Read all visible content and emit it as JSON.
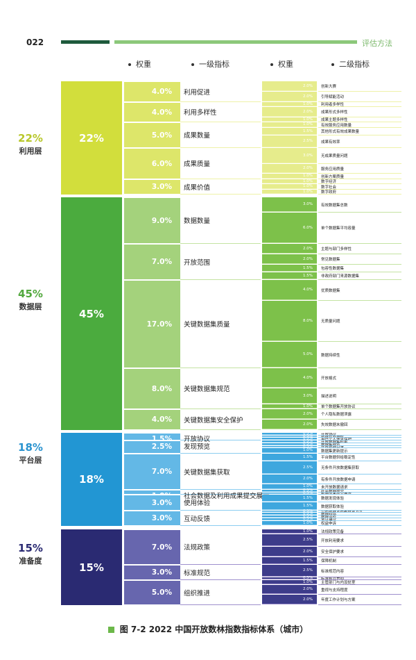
{
  "header": {
    "page_number": "022",
    "section_title": "评估方法"
  },
  "columns": {
    "weight1": "权重",
    "level1": "一级指标",
    "weight2": "权重",
    "level2": "二级指标"
  },
  "caption": "图 7-2  2022 中国开放数林指数指标体系（城市）",
  "layers": [
    {
      "pct": "22%",
      "name": "利用层",
      "color": "#d2de3c",
      "label_color": "#b8c72a",
      "shade1": "#dde66a",
      "shade2": "#e6ec8c",
      "shade_line": "#eef2a8",
      "l1": [
        {
          "weight": "4.0%",
          "name": "利用促进",
          "l2": [
            {
              "weight": "2.0%",
              "name": "创新大赛"
            },
            {
              "weight": "2.0%",
              "name": "引导赋能活动"
            }
          ]
        },
        {
          "weight": "4.0%",
          "name": "利用多样性",
          "l2": [
            {
              "weight": "1.0%",
              "name": "利用者多样性"
            },
            {
              "weight": "2.0%",
              "name": "成果形式多样性"
            },
            {
              "weight": "1.0%",
              "name": "成果主题多样性"
            }
          ]
        },
        {
          "weight": "5.0%",
          "name": "成果数量",
          "l2": [
            {
              "weight": "1.0%",
              "name": "有效服务应用数量"
            },
            {
              "weight": "1.5%",
              "name": "其他形式有效成果数量"
            },
            {
              "weight": "2.5%",
              "name": "成果有效率"
            }
          ]
        },
        {
          "weight": "6.0%",
          "name": "成果质量",
          "l2": [
            {
              "weight": "3.0%",
              "name": "无成果质量问题"
            },
            {
              "weight": "2.0%",
              "name": "服务应用质量"
            },
            {
              "weight": "1.0%",
              "name": "创新方案质量"
            }
          ]
        },
        {
          "weight": "3.0%",
          "name": "成果价值",
          "l2": [
            {
              "weight": "1.0%",
              "name": "数字经济"
            },
            {
              "weight": "1.0%",
              "name": "数字社会"
            },
            {
              "weight": "1.0%",
              "name": "数字政府"
            }
          ]
        }
      ]
    },
    {
      "pct": "45%",
      "name": "数据层",
      "color": "#4bab3e",
      "label_color": "#52a83e",
      "shade1": "#a4d27c",
      "shade2": "#7dc14a",
      "shade_line": "#c4e3a2",
      "l1": [
        {
          "weight": "9.0%",
          "name": "数据数量",
          "l2": [
            {
              "weight": "3.0%",
              "name": "有效数据集总数"
            },
            {
              "weight": "6.0%",
              "name": "单个数据集平均容量"
            }
          ]
        },
        {
          "weight": "7.0%",
          "name": "开放范围",
          "l2": [
            {
              "weight": "2.0%",
              "name": "主题与部门多样性"
            },
            {
              "weight": "2.0%",
              "name": "常见数据集"
            },
            {
              "weight": "1.5%",
              "name": "包容性数据集"
            },
            {
              "weight": "1.5%",
              "name": "非政府部门来源数据集"
            }
          ]
        },
        {
          "weight": "17.0%",
          "name": "关键数据集质量",
          "l2": [
            {
              "weight": "4.0%",
              "name": "优质数据集"
            },
            {
              "weight": "8.0%",
              "name": "无质量问题"
            },
            {
              "weight": "5.0%",
              "name": "数据持续性"
            }
          ]
        },
        {
          "weight": "8.0%",
          "name": "关键数据集规范",
          "l2": [
            {
              "weight": "4.0%",
              "name": "开放格式"
            },
            {
              "weight": "3.0%",
              "name": "描述说明"
            },
            {
              "weight": "1.0%",
              "name": "单个数据集开放协议"
            }
          ]
        },
        {
          "weight": "4.0%",
          "name": "关键数据集安全保护",
          "l2": [
            {
              "weight": "2.0%",
              "name": "个人隐私数据泄露"
            },
            {
              "weight": "2.0%",
              "name": "失效数据未撤回"
            }
          ]
        }
      ]
    },
    {
      "pct": "18%",
      "name": "平台层",
      "color": "#2296d3",
      "label_color": "#2a93cf",
      "shade1": "#63b8e6",
      "shade2": "#3ea7de",
      "shade_line": "#8ccdf0",
      "l1": [
        {
          "weight": "1.5%",
          "name": "开放协议",
          "l2": [
            {
              "weight": "0.5%",
              "name": "开放协议"
            },
            {
              "weight": "0.5%",
              "name": "数据开放授权"
            },
            {
              "weight": "0.5%",
              "name": "用户个人信息保护"
            }
          ]
        },
        {
          "weight": "2.5%",
          "name": "发现预览",
          "l2": [
            {
              "weight": "0.5%",
              "name": "开放数据集检索"
            },
            {
              "weight": "0.5%",
              "name": "数据集预览"
            },
            {
              "weight": "0.5%",
              "name": "开放数据目录"
            },
            {
              "weight": "1.0%",
              "name": "数据集更新提示"
            }
          ]
        },
        {
          "weight": "7.0%",
          "name": "关键数据集获取",
          "l2": [
            {
              "weight": "1.5%",
              "name": "平台数据供给稳定性"
            },
            {
              "weight": "2.5%",
              "name": "无条件开放数据集获取"
            },
            {
              "weight": "2.0%",
              "name": "有条件开放数据申请"
            },
            {
              "weight": "1.0%",
              "name": "未开放数据请求"
            }
          ]
        },
        {
          "weight": "1.0%",
          "name": "社会数据及利用成果提交展示",
          "l2": [
            {
              "weight": "0.5%",
              "name": "社会数据提交"
            },
            {
              "weight": "0.5%",
              "name": "利用成果提交展示"
            }
          ]
        },
        {
          "weight": "3.0%",
          "name": "使用体验",
          "l2": [
            {
              "weight": "1.5%",
              "name": "数据发现体验"
            },
            {
              "weight": "1.5%",
              "name": "数据获取体验"
            }
          ]
        },
        {
          "weight": "3.0%",
          "name": "互动反馈",
          "l2": [
            {
              "weight": "0.5%",
              "name": "公布数据发布者联系方式"
            },
            {
              "weight": "0.5%",
              "name": "数据纠错"
            },
            {
              "weight": "0.5%",
              "name": "数据评价"
            },
            {
              "weight": "0.5%",
              "name": "意见建议"
            },
            {
              "weight": "1.0%",
              "name": "权益申诉"
            }
          ]
        }
      ]
    },
    {
      "pct": "15%",
      "name": "准备度",
      "color": "#2a2a72",
      "label_color": "#2a2a72",
      "shade1": "#6766ae",
      "shade2": "#3d3c8a",
      "shade_line": "#9e8fcd",
      "l1": [
        {
          "weight": "7.0%",
          "name": "法规政策",
          "l2": [
            {
              "weight": "1.0%",
              "name": "法规政策完备"
            },
            {
              "weight": "2.5%",
              "name": "开放利用要求"
            },
            {
              "weight": "2.0%",
              "name": "安全保护要求"
            },
            {
              "weight": "1.5%",
              "name": "保障机制"
            }
          ]
        },
        {
          "weight": "3.0%",
          "name": "标准规范",
          "l2": [
            {
              "weight": "2.5%",
              "name": "标准规范内容"
            },
            {
              "weight": "0.5%",
              "name": "标准规范贯彻"
            }
          ]
        },
        {
          "weight": "5.0%",
          "name": "组织推进",
          "l2": [
            {
              "weight": "1.0%",
              "name": "主管部门与内设处室"
            },
            {
              "weight": "2.0%",
              "name": "重视与支持程度"
            },
            {
              "weight": "2.0%",
              "name": "年度工作计划与方案"
            }
          ]
        }
      ]
    }
  ]
}
